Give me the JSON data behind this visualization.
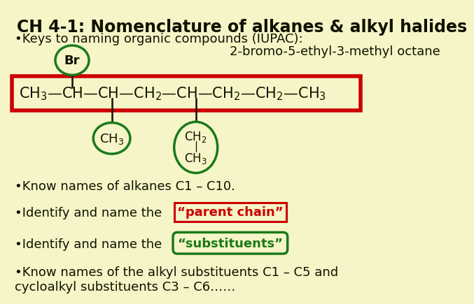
{
  "background_color": "#f5f5c8",
  "title": "CH 4-1: Nomenclature of alkanes & alkyl halides",
  "title_fontsize": 17,
  "subtitle": "•Keys to naming organic compounds (IUPAC):",
  "subtitle_fontsize": 13,
  "compound_label": "2-bromo-5-ethyl-3-methyl octane",
  "compound_label_fontsize": 13,
  "bullet1": "•Know names of alkanes C1 – C10.",
  "bullet2": "•Identify and name the ",
  "parent_chain_label": "“parent chain”",
  "bullet3": "•Identify and name the ",
  "substituents_label": "“substituents”",
  "bullet4": "•Know names of the alkyl substituents C1 – C5 and\ncycloalkyl substituents C3 – C6……",
  "text_color": "#111100",
  "green_color": "#1a7a1a",
  "red_color": "#cc0000",
  "chain_fontsize": 15,
  "bullet_fontsize": 13
}
